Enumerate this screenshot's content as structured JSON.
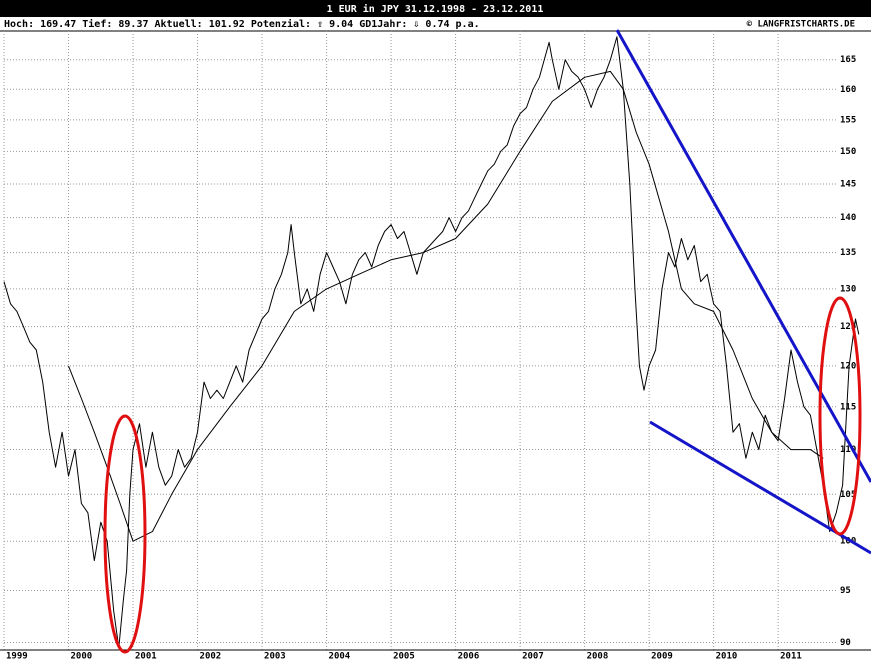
{
  "chart_data": {
    "type": "line",
    "title": "1 EUR in JPY 31.12.1998 - 23.12.2011",
    "subtitle": "Hoch: 169.47  Tief: 89.37  Aktuell: 101.92  Potenzial: ⇧ 9.04  GD1Jahr: ⇩ 0.74 p.a.",
    "source": "© LANGFRISTCHARTS.DE",
    "log_scale": true,
    "grid": true,
    "xlim": [
      1999,
      2012.3
    ],
    "xticks": [
      1999,
      2000,
      2001,
      2002,
      2003,
      2004,
      2005,
      2006,
      2007,
      2008,
      2009,
      2010,
      2011
    ],
    "ylim": [
      89.3,
      170
    ],
    "yticks": [
      90,
      95,
      100,
      105,
      110,
      115,
      120,
      125,
      130,
      135,
      140,
      145,
      150,
      155,
      160,
      165
    ],
    "series": [
      {
        "color": "#000000",
        "x": [
          1999.0,
          1999.1,
          1999.2,
          1999.3,
          1999.4,
          1999.5,
          1999.6,
          1999.7,
          1999.8,
          1999.9,
          2000.0,
          2000.1,
          2000.2,
          2000.3,
          2000.4,
          2000.5,
          2000.6,
          2000.7,
          2000.78,
          2000.85,
          2000.9,
          2000.95,
          2001.0,
          2001.1,
          2001.2,
          2001.3,
          2001.4,
          2001.5,
          2001.6,
          2001.7,
          2001.8,
          2001.9,
          2002.0,
          2002.1,
          2002.2,
          2002.3,
          2002.4,
          2002.5,
          2002.6,
          2002.7,
          2002.8,
          2002.9,
          2003.0,
          2003.1,
          2003.2,
          2003.3,
          2003.4,
          2003.45,
          2003.5,
          2003.6,
          2003.7,
          2003.8,
          2003.9,
          2004.0,
          2004.1,
          2004.2,
          2004.3,
          2004.4,
          2004.5,
          2004.6,
          2004.7,
          2004.8,
          2004.9,
          2005.0,
          2005.1,
          2005.2,
          2005.3,
          2005.4,
          2005.5,
          2005.6,
          2005.7,
          2005.8,
          2005.9,
          2006.0,
          2006.1,
          2006.2,
          2006.3,
          2006.4,
          2006.5,
          2006.6,
          2006.7,
          2006.8,
          2006.9,
          2007.0,
          2007.1,
          2007.2,
          2007.3,
          2007.45,
          2007.5,
          2007.6,
          2007.7,
          2007.8,
          2007.9,
          2008.0,
          2008.1,
          2008.2,
          2008.3,
          2008.4,
          2008.5,
          2008.6,
          2008.7,
          2008.78,
          2008.85,
          2008.92,
          2009.0,
          2009.1,
          2009.2,
          2009.3,
          2009.4,
          2009.5,
          2009.6,
          2009.7,
          2009.8,
          2009.9,
          2010.0,
          2010.1,
          2010.2,
          2010.3,
          2010.4,
          2010.5,
          2010.6,
          2010.7,
          2010.8,
          2010.9,
          2011.0,
          2011.1,
          2011.2,
          2011.3,
          2011.4,
          2011.5,
          2011.6,
          2011.7,
          2011.8,
          2011.9,
          2012.0,
          2012.1,
          2012.2,
          2012.25
        ],
        "values": [
          131,
          128,
          127,
          125,
          123,
          122,
          118,
          112,
          108,
          112,
          107,
          110,
          104,
          103,
          98,
          102,
          100,
          93,
          89.5,
          94,
          97,
          105,
          110,
          113,
          108,
          112,
          108,
          106,
          107,
          110,
          108,
          109,
          112,
          118,
          116,
          117,
          116,
          118,
          120,
          118,
          122,
          124,
          126,
          127,
          130,
          132,
          135,
          139,
          135,
          128,
          130,
          127,
          132,
          135,
          133,
          131,
          128,
          132,
          134,
          135,
          133,
          136,
          138,
          139,
          137,
          138,
          135,
          132,
          135,
          136,
          137,
          138,
          140,
          138,
          140,
          141,
          143,
          145,
          147,
          148,
          150,
          151,
          154,
          156,
          157,
          160,
          162,
          168,
          165,
          160,
          165,
          163,
          162,
          160,
          157,
          160,
          162,
          165,
          169,
          160,
          145,
          130,
          120,
          117,
          120,
          122,
          130,
          135,
          133,
          137,
          134,
          136,
          131,
          132,
          128,
          127,
          120,
          112,
          113,
          109,
          112,
          110,
          114,
          112,
          111,
          116,
          122,
          118,
          115,
          114,
          110,
          106,
          101,
          103,
          106,
          120,
          126,
          124
        ]
      },
      {
        "color": "#000000",
        "x": [
          2000.0,
          2000.2,
          2000.4,
          2000.6,
          2000.8,
          2001.0,
          2001.3,
          2001.6,
          2002.0,
          2002.5,
          2003.0,
          2003.5,
          2004.0,
          2004.5,
          2005.0,
          2005.5,
          2006.0,
          2006.5,
          2007.0,
          2007.5,
          2008.0,
          2008.4,
          2008.6,
          2008.8,
          2009.0,
          2009.3,
          2009.5,
          2009.7,
          2010.0,
          2010.3,
          2010.6,
          2010.9,
          2011.2,
          2011.5,
          2011.7
        ],
        "values": [
          120,
          116,
          112,
          108,
          104,
          100,
          101,
          105,
          110,
          115,
          120,
          127,
          130,
          132,
          134,
          135,
          137,
          142,
          150,
          158,
          162,
          163,
          160,
          153,
          148,
          138,
          130,
          128,
          127,
          122,
          116,
          112,
          110,
          110,
          109
        ]
      }
    ]
  }
}
